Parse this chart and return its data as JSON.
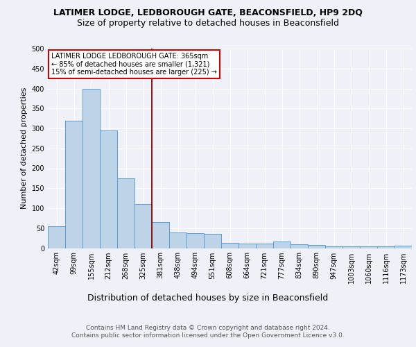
{
  "title": "LATIMER LODGE, LEDBOROUGH GATE, BEACONSFIELD, HP9 2DQ",
  "subtitle": "Size of property relative to detached houses in Beaconsfield",
  "xlabel": "Distribution of detached houses by size in Beaconsfield",
  "ylabel": "Number of detached properties",
  "categories": [
    "42sqm",
    "99sqm",
    "155sqm",
    "212sqm",
    "268sqm",
    "325sqm",
    "381sqm",
    "438sqm",
    "494sqm",
    "551sqm",
    "608sqm",
    "664sqm",
    "721sqm",
    "777sqm",
    "834sqm",
    "890sqm",
    "947sqm",
    "1003sqm",
    "1060sqm",
    "1116sqm",
    "1173sqm"
  ],
  "values": [
    55,
    320,
    400,
    295,
    175,
    110,
    65,
    40,
    38,
    35,
    13,
    12,
    12,
    17,
    10,
    8,
    5,
    4,
    5,
    5,
    6
  ],
  "bar_color": "#bdd4e8",
  "bar_edge_color": "#5b9bd5",
  "vline_color": "#8b0000",
  "annotation_text": "LATIMER LODGE LEDBOROUGH GATE: 365sqm\n← 85% of detached houses are smaller (1,321)\n15% of semi-detached houses are larger (225) →",
  "annotation_box_color": "#ffffff",
  "annotation_box_edge_color": "#cc0000",
  "ylim": [
    0,
    500
  ],
  "yticks": [
    0,
    50,
    100,
    150,
    200,
    250,
    300,
    350,
    400,
    450,
    500
  ],
  "footer_text": "Contains HM Land Registry data © Crown copyright and database right 2024.\nContains public sector information licensed under the Open Government Licence v3.0.",
  "background_color": "#eef2f8",
  "title_fontsize": 9,
  "subtitle_fontsize": 9,
  "xlabel_fontsize": 9,
  "ylabel_fontsize": 8,
  "tick_fontsize": 7,
  "footer_fontsize": 6.5,
  "annotation_fontsize": 7
}
